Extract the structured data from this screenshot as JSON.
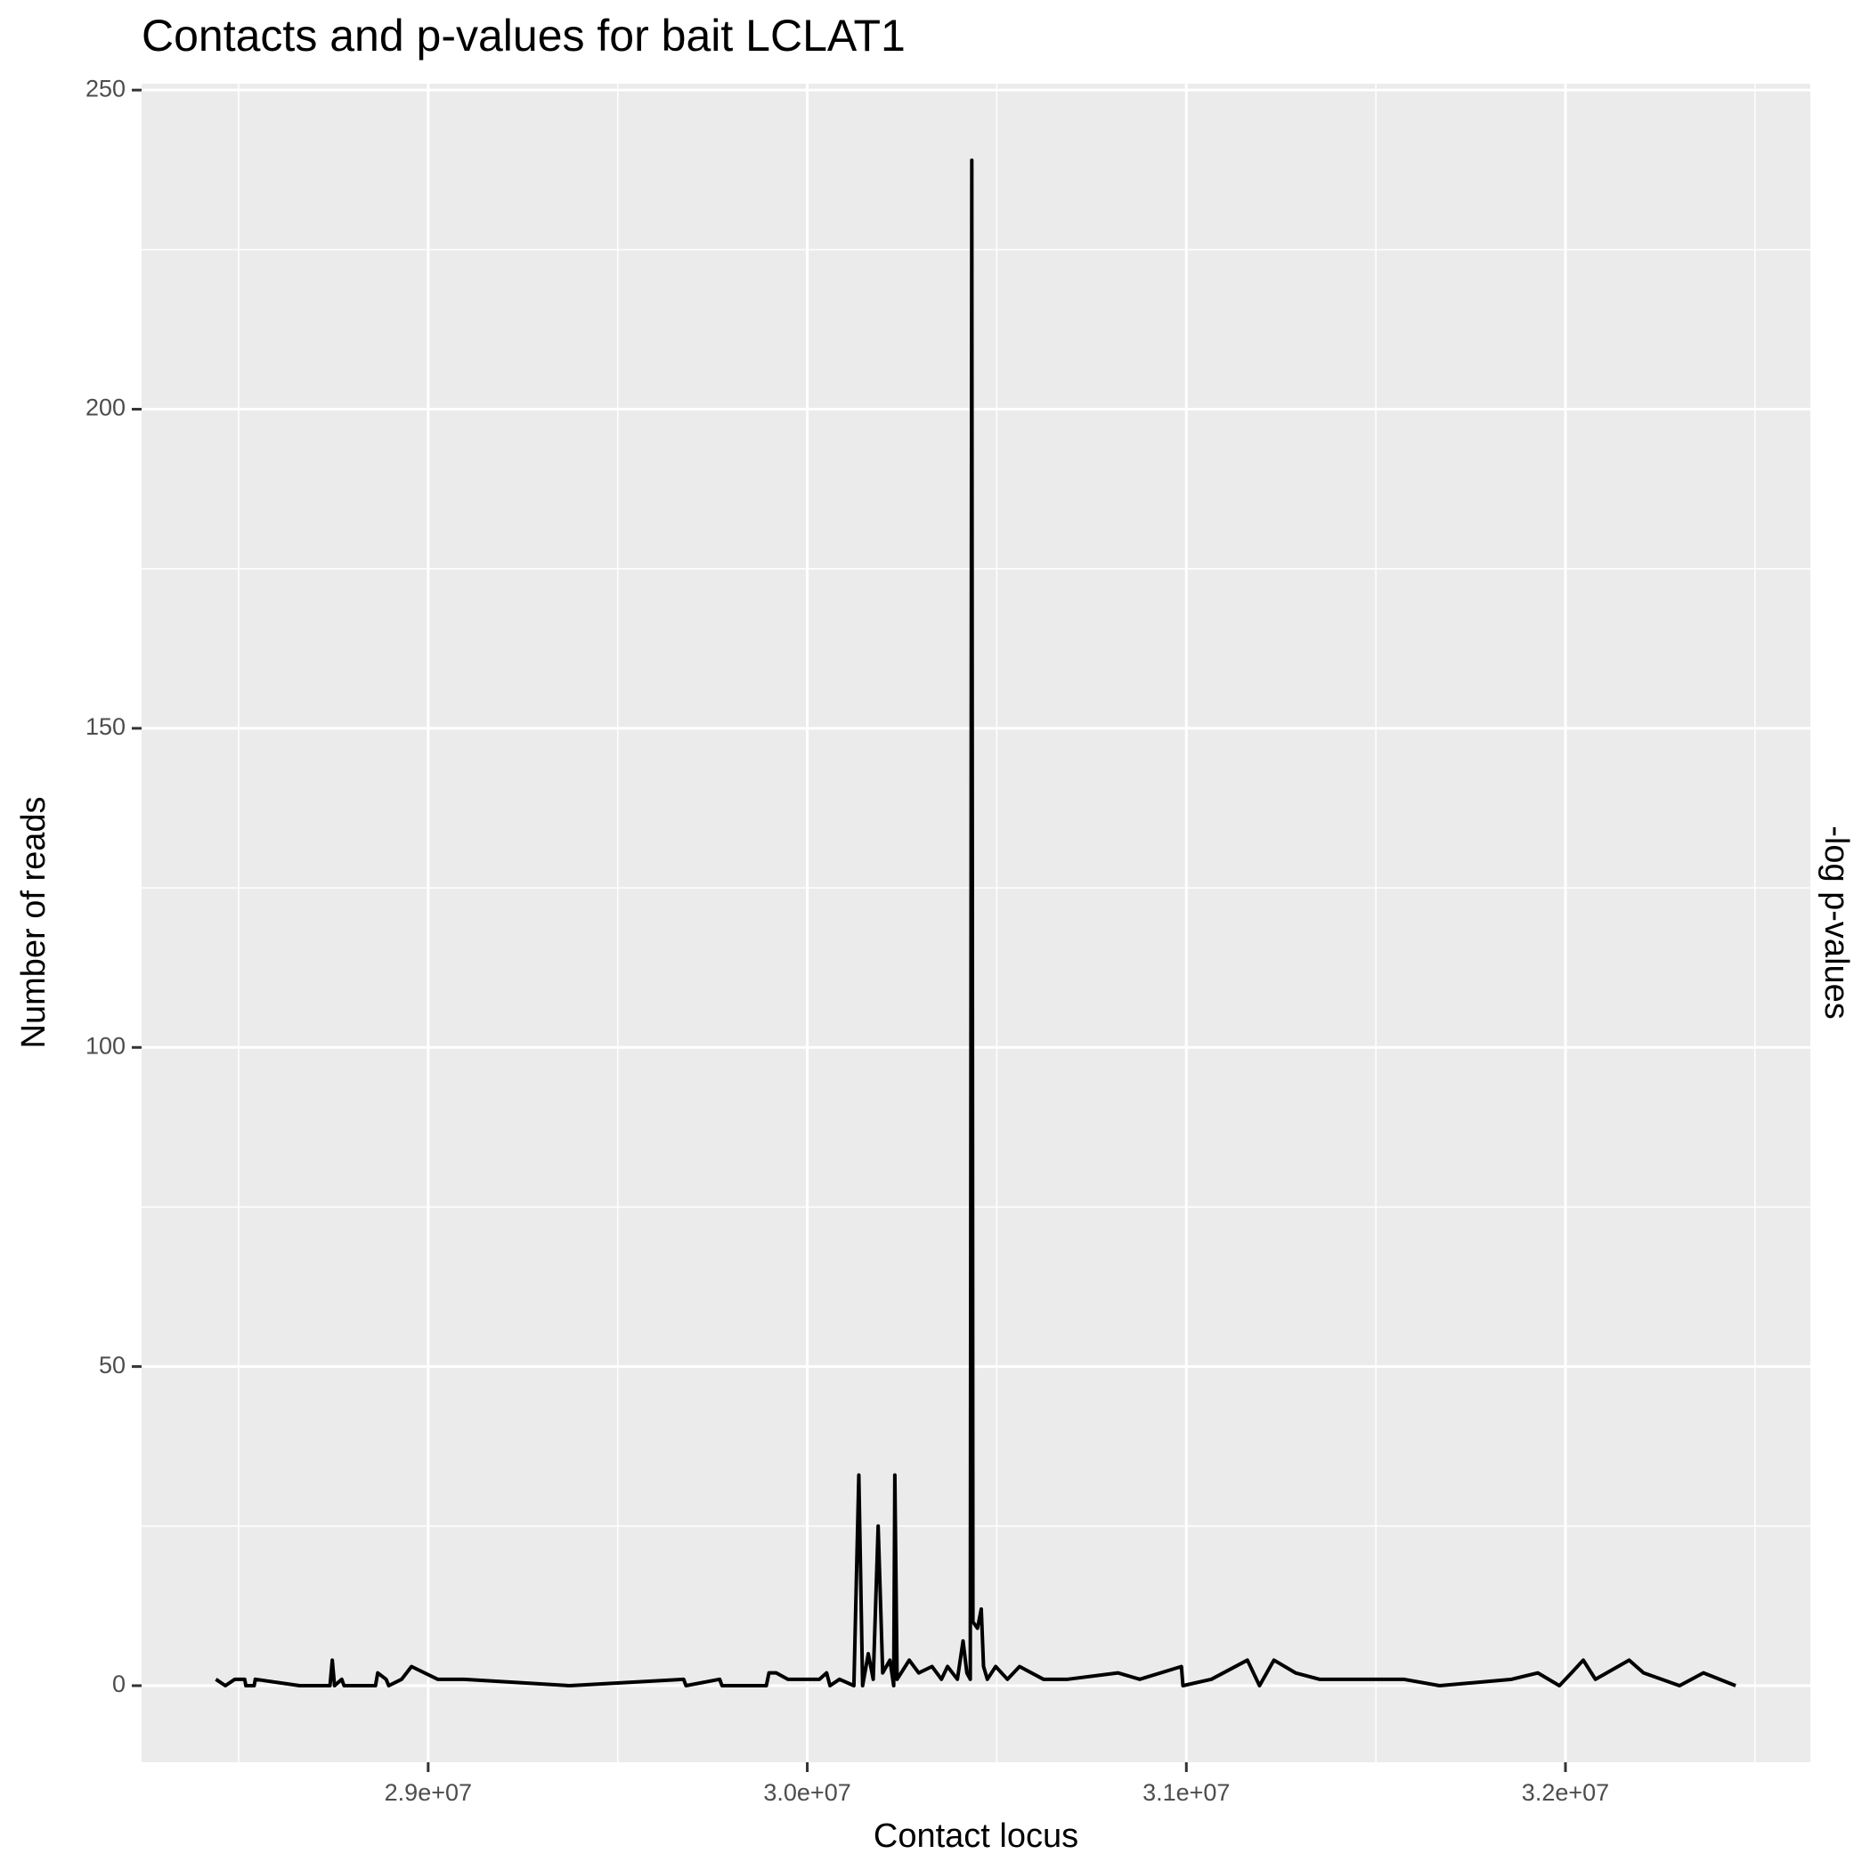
{
  "chart_data": {
    "type": "line",
    "title": "Contacts and p-values for bait LCLAT1",
    "x_label": "Contact locus",
    "y_label": "Number of reads",
    "y2_label": "-log p-values",
    "x": [
      28440000,
      28465000,
      28490000,
      28516000,
      28519000,
      28541000,
      28544000,
      28661000,
      28741000,
      28747000,
      28753000,
      28772000,
      28778000,
      28861000,
      28867000,
      28889000,
      28896000,
      28930000,
      28956000,
      29025000,
      29095000,
      29373000,
      29674000,
      29680000,
      29769000,
      29775000,
      29892000,
      29899000,
      29918000,
      29949000,
      30032000,
      30051000,
      30060000,
      30085000,
      30123000,
      30136000,
      30146000,
      30161000,
      30174000,
      30187000,
      30199000,
      30218000,
      30228000,
      30231000,
      30237000,
      30269000,
      30294000,
      30329000,
      30354000,
      30370000,
      30396000,
      30411000,
      30421000,
      30430000,
      30434000,
      30437000,
      30449000,
      30459000,
      30465000,
      30475000,
      30497000,
      30528000,
      30560000,
      30623000,
      30687000,
      30820000,
      30877000,
      30987000,
      30991000,
      31066000,
      31161000,
      31193000,
      31231000,
      31288000,
      31351000,
      31478000,
      31573000,
      31668000,
      31858000,
      31927000,
      31984000,
      32016000,
      32047000,
      32079000,
      32168000,
      32206000,
      32301000,
      32364000,
      32449000
    ],
    "series": [
      {
        "color": "#000000",
        "values": [
          1,
          0,
          1,
          1,
          0,
          0,
          1,
          0,
          0,
          4,
          0,
          1,
          0,
          0,
          2,
          1,
          0,
          1,
          3,
          1,
          1,
          0,
          1,
          0,
          1,
          0,
          0,
          2,
          2,
          1,
          1,
          2,
          0,
          1,
          0,
          33,
          0,
          5,
          1,
          25,
          2,
          4,
          0,
          33,
          1,
          4,
          2,
          3,
          1,
          3,
          1,
          7,
          2,
          1,
          239,
          10,
          9,
          12,
          3,
          1,
          3,
          1,
          3,
          1,
          1,
          2,
          1,
          3,
          0,
          1,
          4,
          0,
          4,
          2,
          1,
          1,
          1,
          0,
          1,
          2,
          0,
          2,
          4,
          1,
          4,
          2,
          0,
          2,
          0
        ]
      }
    ],
    "xlim": [
      28244000,
      32646000
    ],
    "ylim": [
      -12,
      251
    ],
    "xticks": [
      {
        "value": 29000000,
        "label": "2.9e+07"
      },
      {
        "value": 30000000,
        "label": "3.0e+07"
      },
      {
        "value": 31000000,
        "label": "3.1e+07"
      },
      {
        "value": 32000000,
        "label": "3.2e+07"
      }
    ],
    "x_minor_ticks": [
      28500000,
      29500000,
      30500000,
      31500000,
      32500000
    ],
    "yticks": [
      0,
      50,
      100,
      150,
      200,
      250
    ],
    "y_minor_ticks": [
      25,
      75,
      125,
      175,
      225
    ],
    "grid": true
  }
}
